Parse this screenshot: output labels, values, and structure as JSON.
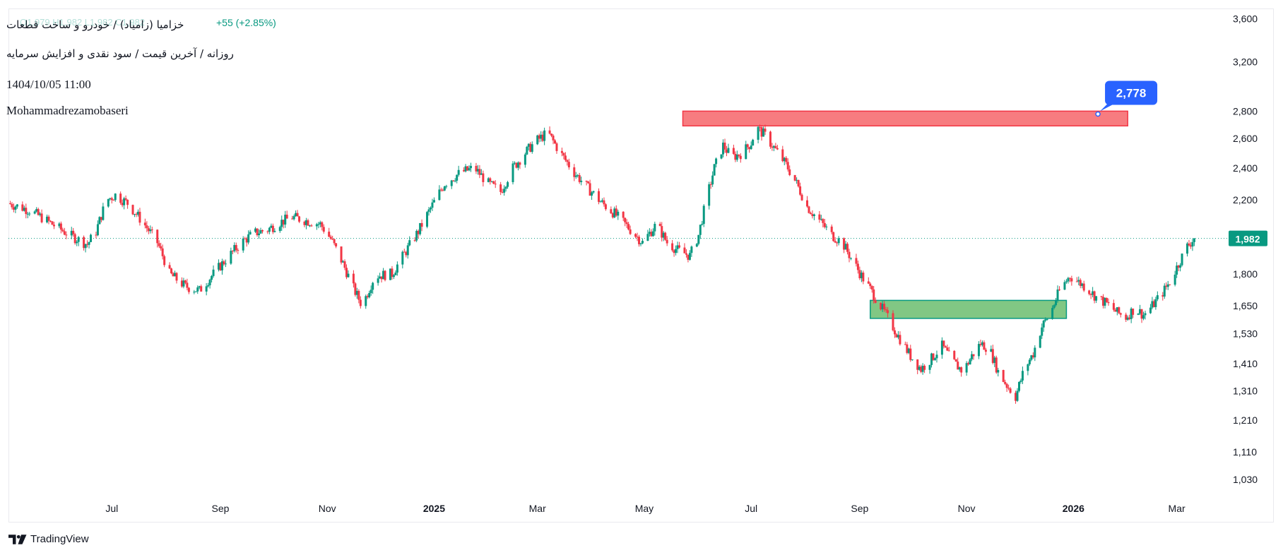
{
  "header": {
    "title": "خزامیا (زامیاد) / خودرو و ساخت قطعات",
    "ohlc_faded": "O1,979 H1,982 L1,982 C1,982",
    "change": "+55 (+2.85%)",
    "subtitle": "روزانه / آخرین قیمت / سود نقدی و افزایش سرمایه",
    "datetime": "1404/10/05 11:00",
    "author": "Mohammadrezamobaseri"
  },
  "footer": {
    "brand": "TradingView"
  },
  "colors": {
    "up": "#089981",
    "down": "#f23645",
    "resistance_fill": "#f77c80",
    "resistance_border": "#f23645",
    "support_fill": "#81c784",
    "support_border": "#089981",
    "price_label": "#089981",
    "callout": "#2962ff",
    "grid_border": "#e0e3eb"
  },
  "chart_data": {
    "type": "candlestick",
    "y_scale": "log",
    "ylim": [
      980,
      3700
    ],
    "xlim": [
      "2024-05-03",
      "2026-03-31"
    ],
    "y_ticks": [
      "3,600",
      "3,200",
      "2,800",
      "2,600",
      "2,400",
      "2,200",
      "1,800",
      "1,650",
      "1,530",
      "1,410",
      "1,310",
      "1,210",
      "1,110",
      "1,030"
    ],
    "x_ticks": [
      {
        "label": "Jul",
        "date": "2024-07-01",
        "bold": false
      },
      {
        "label": "Sep",
        "date": "2024-09-01",
        "bold": false
      },
      {
        "label": "Nov",
        "date": "2024-11-01",
        "bold": false
      },
      {
        "label": "2025",
        "date": "2025-01-01",
        "bold": true
      },
      {
        "label": "Mar",
        "date": "2025-03-01",
        "bold": false
      },
      {
        "label": "May",
        "date": "2025-05-01",
        "bold": false
      },
      {
        "label": "Jul",
        "date": "2025-07-01",
        "bold": false
      },
      {
        "label": "Sep",
        "date": "2025-09-01",
        "bold": false
      },
      {
        "label": "Nov",
        "date": "2025-11-01",
        "bold": false
      },
      {
        "label": "2026",
        "date": "2026-01-01",
        "bold": true
      },
      {
        "label": "Mar",
        "date": "2026-03-01",
        "bold": false
      }
    ],
    "last_price": 1982,
    "last_price_label": "1,982",
    "callout": {
      "label": "2,778",
      "date": "2026-01-15",
      "price": 2778
    },
    "zones": [
      {
        "name": "resistance",
        "from": "2025-05-23",
        "to": "2026-02-01",
        "low": 2690,
        "high": 2800
      },
      {
        "name": "support",
        "from": "2025-09-07",
        "to": "2025-12-28",
        "low": 1595,
        "high": 1675
      }
    ],
    "path": [
      [
        "2024-05-03",
        2180
      ],
      [
        "2024-05-15",
        2140
      ],
      [
        "2024-05-28",
        2060
      ],
      [
        "2024-06-07",
        2000
      ],
      [
        "2024-06-17",
        1950
      ],
      [
        "2024-06-22",
        2020
      ],
      [
        "2024-06-28",
        2200
      ],
      [
        "2024-07-03",
        2230
      ],
      [
        "2024-07-10",
        2180
      ],
      [
        "2024-07-18",
        2080
      ],
      [
        "2024-07-27",
        1960
      ],
      [
        "2024-08-03",
        1800
      ],
      [
        "2024-08-12",
        1740
      ],
      [
        "2024-08-20",
        1720
      ],
      [
        "2024-08-28",
        1800
      ],
      [
        "2024-09-05",
        1880
      ],
      [
        "2024-09-13",
        1960
      ],
      [
        "2024-09-20",
        2010
      ],
      [
        "2024-09-28",
        2030
      ],
      [
        "2024-10-05",
        2070
      ],
      [
        "2024-10-12",
        2100
      ],
      [
        "2024-10-20",
        2080
      ],
      [
        "2024-10-28",
        2060
      ],
      [
        "2024-11-03",
        1980
      ],
      [
        "2024-11-10",
        1850
      ],
      [
        "2024-11-16",
        1730
      ],
      [
        "2024-11-21",
        1650
      ],
      [
        "2024-11-28",
        1790
      ],
      [
        "2024-12-08",
        1800
      ],
      [
        "2024-12-15",
        1900
      ],
      [
        "2024-12-23",
        2020
      ],
      [
        "2024-12-30",
        2150
      ],
      [
        "2025-01-07",
        2300
      ],
      [
        "2025-01-16",
        2370
      ],
      [
        "2025-01-24",
        2400
      ],
      [
        "2025-02-01",
        2300
      ],
      [
        "2025-02-08",
        2250
      ],
      [
        "2025-02-15",
        2400
      ],
      [
        "2025-02-22",
        2500
      ],
      [
        "2025-02-28",
        2580
      ],
      [
        "2025-03-07",
        2640
      ],
      [
        "2025-03-14",
        2500
      ],
      [
        "2025-03-22",
        2370
      ],
      [
        "2025-03-30",
        2270
      ],
      [
        "2025-04-07",
        2180
      ],
      [
        "2025-04-14",
        2120
      ],
      [
        "2025-04-21",
        2050
      ],
      [
        "2025-04-30",
        1960
      ],
      [
        "2025-05-08",
        2060
      ],
      [
        "2025-05-14",
        1960
      ],
      [
        "2025-05-20",
        1920
      ],
      [
        "2025-05-27",
        1890
      ],
      [
        "2025-06-01",
        2000
      ],
      [
        "2025-06-05",
        2180
      ],
      [
        "2025-06-10",
        2400
      ],
      [
        "2025-06-15",
        2550
      ],
      [
        "2025-06-20",
        2470
      ],
      [
        "2025-06-26",
        2500
      ],
      [
        "2025-07-01",
        2570
      ],
      [
        "2025-07-04",
        2680
      ],
      [
        "2025-07-09",
        2620
      ],
      [
        "2025-07-15",
        2520
      ],
      [
        "2025-07-21",
        2420
      ],
      [
        "2025-07-27",
        2300
      ],
      [
        "2025-08-02",
        2160
      ],
      [
        "2025-08-09",
        2080
      ],
      [
        "2025-08-16",
        2000
      ],
      [
        "2025-08-22",
        1960
      ],
      [
        "2025-08-27",
        1880
      ],
      [
        "2025-09-02",
        1790
      ],
      [
        "2025-09-09",
        1700
      ],
      [
        "2025-09-16",
        1610
      ],
      [
        "2025-09-23",
        1520
      ],
      [
        "2025-09-30",
        1440
      ],
      [
        "2025-10-06",
        1390
      ],
      [
        "2025-10-12",
        1430
      ],
      [
        "2025-10-18",
        1480
      ],
      [
        "2025-10-24",
        1420
      ],
      [
        "2025-10-30",
        1380
      ],
      [
        "2025-11-04",
        1440
      ],
      [
        "2025-11-09",
        1490
      ],
      [
        "2025-11-14",
        1470
      ],
      [
        "2025-11-19",
        1380
      ],
      [
        "2025-11-24",
        1330
      ],
      [
        "2025-11-29",
        1290
      ],
      [
        "2025-12-04",
        1390
      ],
      [
        "2025-12-09",
        1450
      ],
      [
        "2025-12-14",
        1560
      ],
      [
        "2025-12-19",
        1620
      ],
      [
        "2025-12-24",
        1720
      ],
      [
        "2025-12-30",
        1790
      ],
      [
        "2026-01-04",
        1760
      ],
      [
        "2026-01-09",
        1730
      ],
      [
        "2026-01-14",
        1690
      ],
      [
        "2026-01-20",
        1660
      ],
      [
        "2026-01-26",
        1620
      ],
      [
        "2026-01-31",
        1600
      ],
      [
        "2026-02-05",
        1640
      ],
      [
        "2026-02-10",
        1610
      ],
      [
        "2026-02-15",
        1650
      ],
      [
        "2026-02-20",
        1700
      ],
      [
        "2026-02-25",
        1760
      ],
      [
        "2026-03-02",
        1850
      ],
      [
        "2026-03-07",
        1940
      ],
      [
        "2026-03-11",
        1982
      ]
    ]
  }
}
